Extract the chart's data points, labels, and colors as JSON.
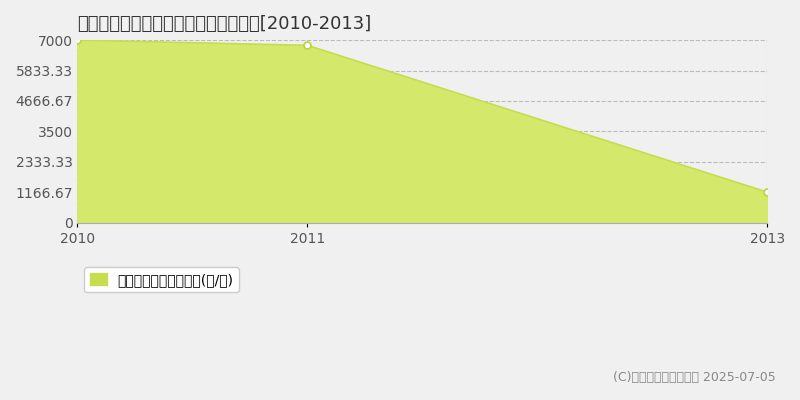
{
  "title": "東白川郡棚倉町天王内　林地価格推移[2010-2013]",
  "x_values": [
    2010,
    2011,
    2013
  ],
  "y_values": [
    7000,
    6800,
    1166.67
  ],
  "fill_color": "#d4e96b",
  "line_color": "#c8dc50",
  "marker_color": "#c0d040",
  "background_color": "#f0f0f0",
  "plot_bg_color": "#f0f0f0",
  "yticks": [
    0,
    1166.67,
    2333.33,
    3500,
    4666.67,
    5833.33,
    7000
  ],
  "ytick_labels": [
    "0",
    "1166.67",
    "2333.33",
    "3500",
    "4666.67",
    "5833.33",
    "7000"
  ],
  "xticks": [
    2010,
    2011,
    2013
  ],
  "xtick_labels": [
    "2010",
    "2011",
    "2013"
  ],
  "ylim": [
    0,
    7000
  ],
  "xlim": [
    2010,
    2013
  ],
  "legend_label": "林地価格　平均嵪単価(円/嵪)",
  "legend_color": "#c8dc50",
  "copyright_text": "(C)土地価格ドットコム 2025-07-05",
  "grid_color": "#bbbbbb",
  "grid_style": "--",
  "title_fontsize": 13,
  "tick_fontsize": 10,
  "legend_fontsize": 10
}
